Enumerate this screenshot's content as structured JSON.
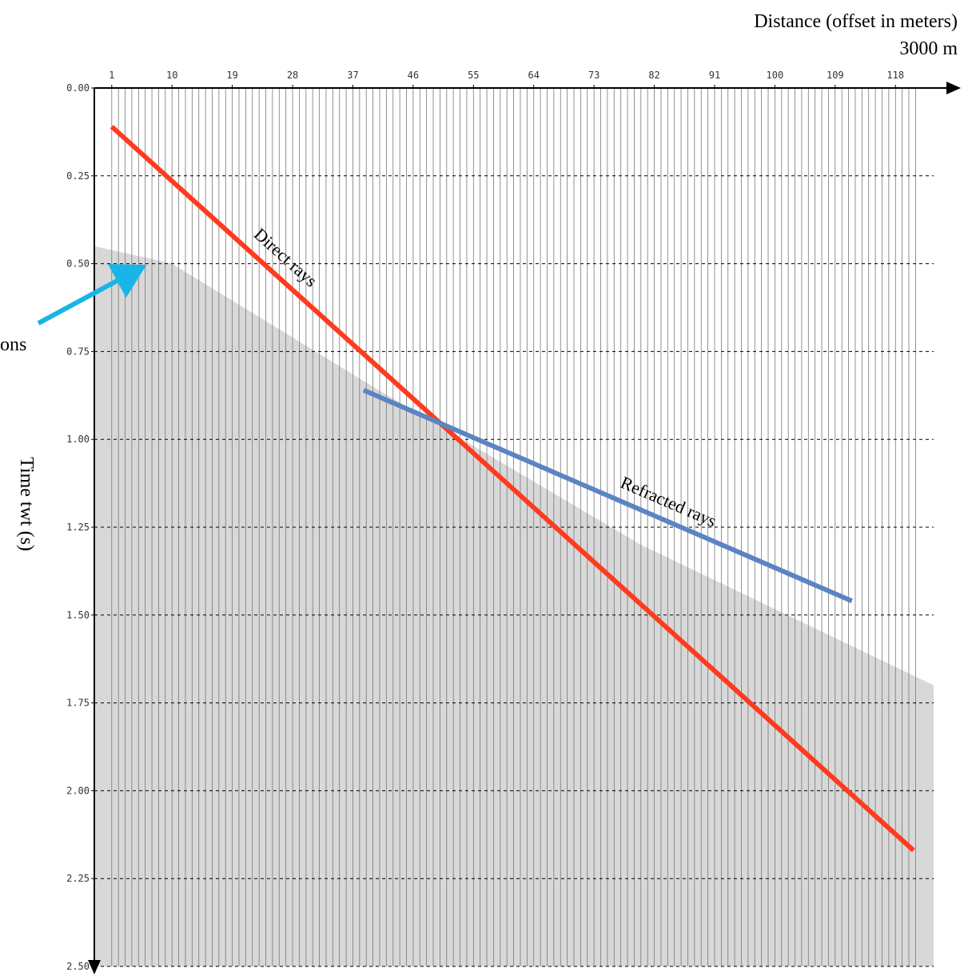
{
  "chart_data": {
    "type": "line",
    "title_lines": [
      "Distance (offset in meters)",
      "3000 m"
    ],
    "y_label": "Time twt (s)",
    "annotation": "ons",
    "xlim": [
      -1.6,
      123.7
    ],
    "xticks": [
      1,
      10,
      19,
      28,
      37,
      46,
      55,
      64,
      73,
      82,
      91,
      100,
      109,
      118
    ],
    "ylim": [
      0,
      2.5
    ],
    "yticks": [
      {
        "value": 0,
        "label": "0.00"
      },
      0.25,
      {
        "value": 0.5,
        "label": "0.50"
      },
      0.75,
      {
        "value": 1,
        "label": "1.00"
      },
      1.25,
      {
        "value": 1.5,
        "label": "1.50"
      },
      1.75,
      {
        "value": 2,
        "label": "2.00"
      },
      2.25,
      {
        "value": 2.5,
        "label": "2.50"
      }
    ],
    "grid": true,
    "series": [
      {
        "name": "Direct rays",
        "color": "#ff3b1f",
        "x": [
          1,
          120.7
        ],
        "values": [
          0.11,
          2.17
        ]
      },
      {
        "name": "Refracted rays",
        "color": "#5b84c4",
        "x": [
          38.6,
          111.5
        ],
        "values": [
          0.86,
          1.46
        ]
      }
    ]
  }
}
